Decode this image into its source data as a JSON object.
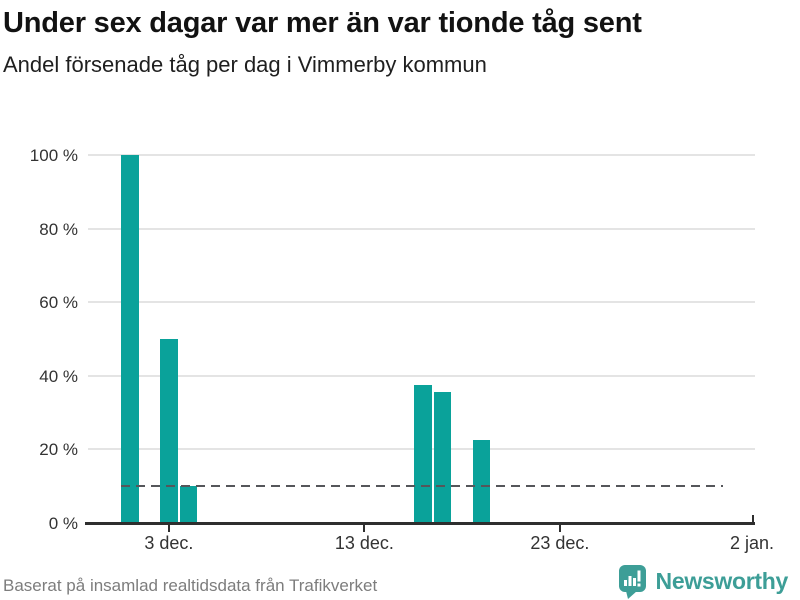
{
  "header": {
    "title": "Under sex dagar var mer än var tionde tåg sent",
    "subtitle": "Andel försenade tåg per dag i Vimmerby kommun"
  },
  "chart_data": {
    "type": "bar",
    "title": "Under sex dagar var mer än var tionde tåg sent",
    "subtitle": "Andel försenade tåg per dag i Vimmerby kommun",
    "unit": "%",
    "ylim": [
      0,
      100
    ],
    "grid": true,
    "legend": false,
    "yticks": [
      {
        "value": 0,
        "label": "0 %"
      },
      {
        "value": 20,
        "label": "20 %"
      },
      {
        "value": 40,
        "label": "40 %"
      },
      {
        "value": 60,
        "label": "60 %"
      },
      {
        "value": 80,
        "label": "80 %"
      },
      {
        "value": 100,
        "label": "100 %"
      }
    ],
    "xticks": [
      {
        "day": 2,
        "label": "3 dec."
      },
      {
        "day": 12,
        "label": "13 dec."
      },
      {
        "day": 22,
        "label": "23 dec."
      },
      {
        "day": 32,
        "label": "2 jan.",
        "at_axis_end": true
      }
    ],
    "points": [
      {
        "date": "1 dec.",
        "day": 0,
        "value": 100
      },
      {
        "date": "3 dec.",
        "day": 2,
        "value": 50
      },
      {
        "date": "4 dec.",
        "day": 3,
        "value": 10
      },
      {
        "date": "16 dec.",
        "day": 15,
        "value": 37.5
      },
      {
        "date": "17 dec.",
        "day": 16,
        "value": 35.5
      },
      {
        "date": "19 dec.",
        "day": 18,
        "value": 22.5
      }
    ],
    "reference_line": {
      "value": 10,
      "style": "dashed"
    }
  },
  "footer": {
    "source": "Baserat på insamlad realtidsdata från Trafikverket",
    "brand": "Newsworthy"
  },
  "colors": {
    "bar": "#0aa29a",
    "brand": "#3d9e97",
    "reference": "#55565a",
    "grid": "#e4e4e4",
    "axis": "#2e2e2e",
    "text": "#333333",
    "muted": "#7d7d7d",
    "title": "#121212"
  }
}
